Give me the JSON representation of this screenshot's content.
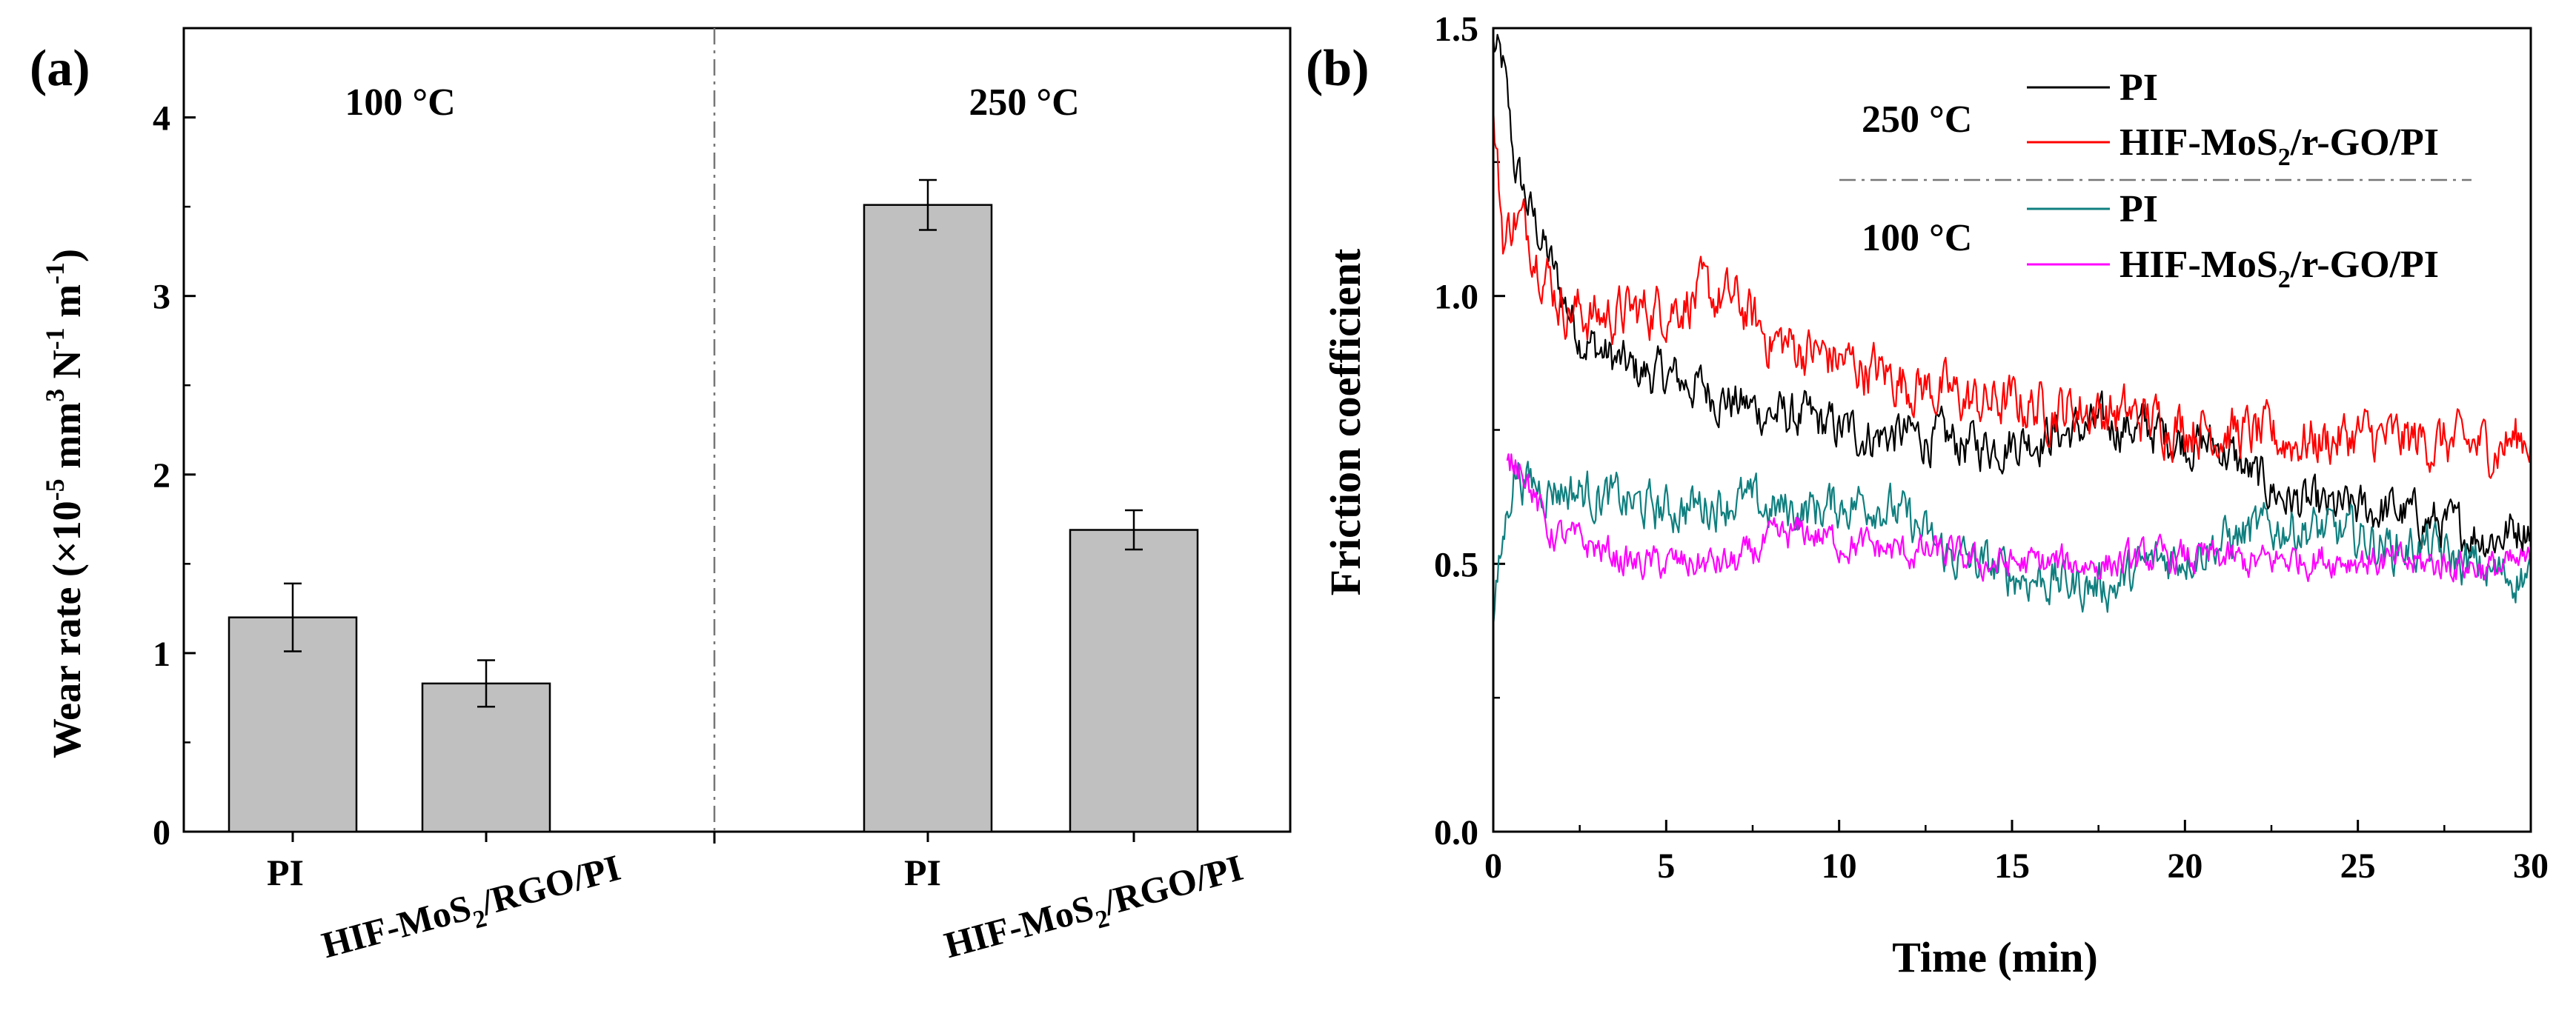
{
  "chart_data": [
    {
      "type": "bar",
      "panel_label": "(a)",
      "ylabel": {
        "main": "Wear rate (×10",
        "exp1": "-5",
        "mid1": " mm",
        "exp2": "3",
        "mid2": " N",
        "exp3": "-1",
        "mid3": " m",
        "exp4": "-1",
        "end": ")"
      },
      "ylim": [
        0,
        4.5
      ],
      "yticks": [
        "0",
        "1",
        "2",
        "3",
        "4"
      ],
      "groups": [
        {
          "label": "100 °C"
        },
        {
          "label": "250 °C"
        }
      ],
      "bars": [
        {
          "group": 0,
          "value": 1.2,
          "error": 0.19,
          "label": "PI"
        },
        {
          "group": 0,
          "value": 0.83,
          "error": 0.13,
          "label": "HIF-MoS2/RGO/PI"
        },
        {
          "group": 1,
          "value": 3.51,
          "error": 0.14,
          "label": "PI"
        },
        {
          "group": 1,
          "value": 1.69,
          "error": 0.11,
          "label": "HIF-MoS2/RGO/PI"
        }
      ],
      "tick_labels": [
        {
          "text": "PI"
        },
        {
          "pre": "HIF-MoS",
          "sub": "2",
          "post": "/RGO/PI"
        },
        {
          "text": "PI"
        },
        {
          "pre": "HIF-MoS",
          "sub": "2",
          "post": "/RGO/PI"
        }
      ],
      "bar_color": "#c0c0c0"
    },
    {
      "type": "line",
      "panel_label": "(b)",
      "xlabel": "Time (min)",
      "ylabel": "Friction coefficient",
      "xlim": [
        0,
        30
      ],
      "ylim": [
        0,
        1.5
      ],
      "xticks": [
        "0",
        "5",
        "10",
        "15",
        "20",
        "25",
        "30"
      ],
      "yticks": [
        "0.0",
        "0.5",
        "1.0",
        "1.5"
      ],
      "legend_groups": [
        {
          "label": "250 °C"
        },
        {
          "label": "100 °C"
        }
      ],
      "series": [
        {
          "name": "PI",
          "group": "250 °C",
          "color": "#000000",
          "points": [
            [
              0,
              1.47
            ],
            [
              0.3,
              1.42
            ],
            [
              0.6,
              1.25
            ],
            [
              1,
              1.17
            ],
            [
              1.5,
              1.09
            ],
            [
              2,
              1.0
            ],
            [
              2.5,
              0.93
            ],
            [
              3,
              0.9
            ],
            [
              4,
              0.86
            ],
            [
              5,
              0.85
            ],
            [
              6,
              0.83
            ],
            [
              7,
              0.8
            ],
            [
              8,
              0.78
            ],
            [
              9,
              0.77
            ],
            [
              10,
              0.75
            ],
            [
              11,
              0.74
            ],
            [
              12,
              0.74
            ],
            [
              13,
              0.73
            ],
            [
              14,
              0.72
            ],
            [
              15,
              0.73
            ],
            [
              16,
              0.74
            ],
            [
              17,
              0.75
            ],
            [
              18,
              0.76
            ],
            [
              19,
              0.75
            ],
            [
              20,
              0.73
            ],
            [
              21,
              0.72
            ],
            [
              22,
              0.66
            ],
            [
              23,
              0.62
            ],
            [
              24,
              0.6
            ],
            [
              25,
              0.6
            ],
            [
              26,
              0.6
            ],
            [
              27,
              0.58
            ],
            [
              28,
              0.56
            ],
            [
              29,
              0.55
            ],
            [
              30,
              0.58
            ]
          ]
        },
        {
          "name": "HIF-MoS2/r-GO/PI",
          "group": "250 °C",
          "color": "#ff0000",
          "points": [
            [
              0,
              1.33
            ],
            [
              0.3,
              1.1
            ],
            [
              0.6,
              1.15
            ],
            [
              1,
              1.12
            ],
            [
              1.5,
              1.05
            ],
            [
              2,
              0.98
            ],
            [
              3,
              0.96
            ],
            [
              4,
              0.97
            ],
            [
              5,
              0.98
            ],
            [
              6,
              1.0
            ],
            [
              7,
              0.99
            ],
            [
              8,
              0.92
            ],
            [
              9,
              0.9
            ],
            [
              10,
              0.88
            ],
            [
              11,
              0.86
            ],
            [
              12,
              0.84
            ],
            [
              13,
              0.82
            ],
            [
              14,
              0.8
            ],
            [
              15,
              0.8
            ],
            [
              16,
              0.79
            ],
            [
              17,
              0.79
            ],
            [
              18,
              0.78
            ],
            [
              19,
              0.77
            ],
            [
              20,
              0.76
            ],
            [
              21,
              0.75
            ],
            [
              22,
              0.74
            ],
            [
              23,
              0.73
            ],
            [
              24,
              0.73
            ],
            [
              25,
              0.74
            ],
            [
              26,
              0.73
            ],
            [
              27,
              0.73
            ],
            [
              28,
              0.72
            ],
            [
              29,
              0.72
            ],
            [
              30,
              0.74
            ]
          ]
        },
        {
          "name": "PI",
          "group": "100 °C",
          "color": "#107f7f",
          "points": [
            [
              0,
              0.4
            ],
            [
              0.3,
              0.55
            ],
            [
              0.6,
              0.68
            ],
            [
              1,
              0.65
            ],
            [
              2,
              0.64
            ],
            [
              3,
              0.63
            ],
            [
              4,
              0.61
            ],
            [
              5,
              0.6
            ],
            [
              6,
              0.61
            ],
            [
              7,
              0.62
            ],
            [
              8,
              0.6
            ],
            [
              9,
              0.6
            ],
            [
              10,
              0.61
            ],
            [
              11,
              0.62
            ],
            [
              12,
              0.58
            ],
            [
              13,
              0.52
            ],
            [
              14,
              0.5
            ],
            [
              15,
              0.48
            ],
            [
              16,
              0.47
            ],
            [
              17,
              0.46
            ],
            [
              18,
              0.46
            ],
            [
              19,
              0.5
            ],
            [
              20,
              0.52
            ],
            [
              21,
              0.54
            ],
            [
              22,
              0.56
            ],
            [
              23,
              0.57
            ],
            [
              24,
              0.56
            ],
            [
              25,
              0.55
            ],
            [
              26,
              0.53
            ],
            [
              27,
              0.53
            ],
            [
              28,
              0.5
            ],
            [
              29,
              0.48
            ],
            [
              30,
              0.48
            ]
          ]
        },
        {
          "name": "HIF-MoS2/r-GO/PI",
          "group": "100 °C",
          "color": "#ff00ff",
          "points": [
            [
              0.4,
              0.68
            ],
            [
              0.8,
              0.7
            ],
            [
              1.2,
              0.62
            ],
            [
              1.6,
              0.56
            ],
            [
              2,
              0.55
            ],
            [
              3,
              0.53
            ],
            [
              4,
              0.5
            ],
            [
              5,
              0.5
            ],
            [
              6,
              0.5
            ],
            [
              7,
              0.5
            ],
            [
              8,
              0.54
            ],
            [
              9,
              0.56
            ],
            [
              10,
              0.54
            ],
            [
              11,
              0.53
            ],
            [
              12,
              0.52
            ],
            [
              13,
              0.52
            ],
            [
              14,
              0.5
            ],
            [
              15,
              0.5
            ],
            [
              16,
              0.5
            ],
            [
              17,
              0.5
            ],
            [
              18,
              0.5
            ],
            [
              19,
              0.51
            ],
            [
              20,
              0.51
            ],
            [
              21,
              0.51
            ],
            [
              22,
              0.5
            ],
            [
              23,
              0.51
            ],
            [
              24,
              0.51
            ],
            [
              25,
              0.51
            ],
            [
              26,
              0.5
            ],
            [
              27,
              0.5
            ],
            [
              28,
              0.5
            ],
            [
              29,
              0.49
            ],
            [
              30,
              0.5
            ]
          ]
        }
      ],
      "legend_entries": [
        {
          "text": "PI"
        },
        {
          "pre": "HIF-MoS",
          "sub": "2",
          "post": "/r-GO/PI"
        },
        {
          "text": "PI"
        },
        {
          "pre": "HIF-MoS",
          "sub": "2",
          "post": "/r-GO/PI"
        }
      ]
    }
  ]
}
